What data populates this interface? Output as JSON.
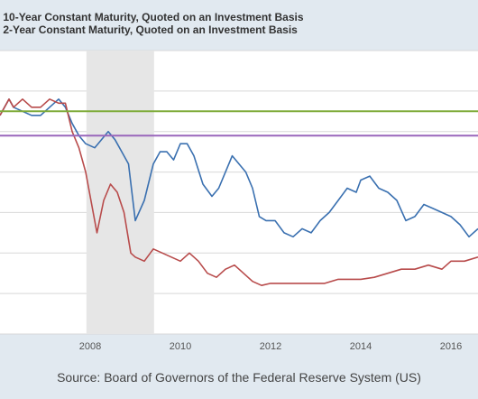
{
  "chart_data": {
    "type": "line",
    "title": "",
    "xlabel": "",
    "ylabel": "",
    "source": "Source: Board of Governors of the Federal Reserve System (US)",
    "x_tick_labels": [
      "2008",
      "2010",
      "2012",
      "2014",
      "2016"
    ],
    "xlim": [
      2006.0,
      2016.6
    ],
    "ylim": [
      -1.0,
      6.0
    ],
    "grid": true,
    "legend_position": "top-left",
    "recession_shading": {
      "start": "2007-12",
      "end": "2009-06",
      "color": "#e6e6e6"
    },
    "series": [
      {
        "name": "10-Year Constant Maturity, Quoted on an Investment Basis",
        "color": "#3a70b0",
        "x": [
          2006.0,
          2006.2,
          2006.3,
          2006.5,
          2006.7,
          2006.9,
          2007.1,
          2007.3,
          2007.45,
          2007.6,
          2007.75,
          2007.9,
          2008.1,
          2008.25,
          2008.4,
          2008.55,
          2008.7,
          2008.85,
          2009.0,
          2009.2,
          2009.4,
          2009.55,
          2009.7,
          2009.85,
          2010.0,
          2010.15,
          2010.3,
          2010.5,
          2010.7,
          2010.85,
          2011.0,
          2011.15,
          2011.3,
          2011.45,
          2011.6,
          2011.75,
          2011.9,
          2012.1,
          2012.3,
          2012.5,
          2012.7,
          2012.9,
          2013.1,
          2013.3,
          2013.5,
          2013.7,
          2013.9,
          2014.0,
          2014.2,
          2014.4,
          2014.6,
          2014.8,
          2015.0,
          2015.2,
          2015.4,
          2015.6,
          2015.8,
          2016.0,
          2016.2,
          2016.4,
          2016.6
        ],
        "y": [
          4.4,
          4.8,
          4.6,
          4.5,
          4.4,
          4.4,
          4.6,
          4.8,
          4.6,
          4.2,
          3.9,
          3.7,
          3.6,
          3.8,
          4.0,
          3.8,
          3.5,
          3.2,
          1.8,
          2.3,
          3.2,
          3.5,
          3.5,
          3.3,
          3.7,
          3.7,
          3.4,
          2.7,
          2.4,
          2.6,
          3.0,
          3.4,
          3.2,
          3.0,
          2.6,
          1.9,
          1.8,
          1.8,
          1.5,
          1.4,
          1.6,
          1.5,
          1.8,
          2.0,
          2.3,
          2.6,
          2.5,
          2.8,
          2.9,
          2.6,
          2.5,
          2.3,
          1.8,
          1.9,
          2.2,
          2.1,
          2.0,
          1.9,
          1.7,
          1.4,
          1.6
        ]
      },
      {
        "name": "2-Year Constant Maturity, Quoted on an Investment Basis",
        "color": "#b84b4b",
        "x": [
          2006.0,
          2006.2,
          2006.3,
          2006.5,
          2006.7,
          2006.9,
          2007.1,
          2007.3,
          2007.45,
          2007.6,
          2007.75,
          2007.9,
          2008.0,
          2008.15,
          2008.3,
          2008.45,
          2008.6,
          2008.75,
          2008.9,
          2009.0,
          2009.2,
          2009.4,
          2009.6,
          2009.8,
          2010.0,
          2010.2,
          2010.4,
          2010.6,
          2010.8,
          2011.0,
          2011.2,
          2011.4,
          2011.6,
          2011.8,
          2012.0,
          2012.3,
          2012.6,
          2012.9,
          2013.2,
          2013.5,
          2013.8,
          2014.0,
          2014.3,
          2014.6,
          2014.9,
          2015.2,
          2015.5,
          2015.8,
          2016.0,
          2016.3,
          2016.6
        ],
        "y": [
          4.4,
          4.8,
          4.6,
          4.8,
          4.6,
          4.6,
          4.8,
          4.7,
          4.7,
          4.0,
          3.6,
          3.0,
          2.4,
          1.5,
          2.3,
          2.7,
          2.5,
          2.0,
          1.0,
          0.9,
          0.8,
          1.1,
          1.0,
          0.9,
          0.8,
          1.0,
          0.8,
          0.5,
          0.4,
          0.6,
          0.7,
          0.5,
          0.3,
          0.2,
          0.25,
          0.25,
          0.25,
          0.25,
          0.25,
          0.35,
          0.35,
          0.35,
          0.4,
          0.5,
          0.6,
          0.6,
          0.7,
          0.6,
          0.8,
          0.8,
          0.9
        ]
      },
      {
        "name": "",
        "color": "#7fab3a",
        "x": [
          2006.0,
          2016.6
        ],
        "y": [
          4.5,
          4.5
        ]
      },
      {
        "name": "",
        "color": "#9966bb",
        "x": [
          2006.0,
          2016.6
        ],
        "y": [
          3.9,
          3.9
        ]
      }
    ]
  }
}
